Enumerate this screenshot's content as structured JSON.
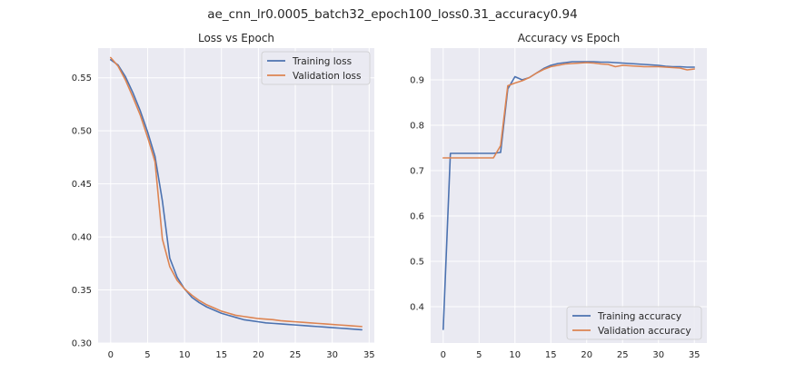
{
  "figure": {
    "title": "ae_cnn_lr0.0005_batch32_epoch100_loss0.31_accuracy0.94"
  },
  "colors": {
    "background": "#eaeaf2",
    "grid": "#ffffff",
    "training": "#4c72b0",
    "validation": "#dd8452"
  },
  "chart_data": [
    {
      "type": "line",
      "title": "Loss vs Epoch",
      "xlabel": "",
      "ylabel": "",
      "xlim": [
        -1.7,
        35.7
      ],
      "ylim": [
        0.3,
        0.578
      ],
      "xticks": [
        0,
        5,
        10,
        15,
        20,
        25,
        30,
        35
      ],
      "yticks": [
        0.3,
        0.35,
        0.4,
        0.45,
        0.5,
        0.55
      ],
      "ytick_labels": [
        "0.30",
        "0.35",
        "0.40",
        "0.45",
        "0.50",
        "0.55"
      ],
      "grid": true,
      "legend_position": "top-right",
      "x": [
        0,
        1,
        2,
        3,
        4,
        5,
        6,
        7,
        8,
        9,
        10,
        11,
        12,
        13,
        14,
        15,
        16,
        17,
        18,
        19,
        20,
        21,
        22,
        23,
        24,
        25,
        26,
        27,
        28,
        29,
        30,
        31,
        32,
        33,
        34
      ],
      "series": [
        {
          "name": "Training loss",
          "color": "#4c72b0",
          "values": [
            0.567,
            0.562,
            0.551,
            0.536,
            0.519,
            0.499,
            0.476,
            0.434,
            0.38,
            0.362,
            0.351,
            0.343,
            0.338,
            0.334,
            0.331,
            0.328,
            0.326,
            0.324,
            0.322,
            0.321,
            0.32,
            0.319,
            0.3185,
            0.318,
            0.3175,
            0.317,
            0.3165,
            0.316,
            0.3155,
            0.315,
            0.3145,
            0.314,
            0.3135,
            0.313,
            0.3125
          ]
        },
        {
          "name": "Validation loss",
          "color": "#dd8452",
          "values": [
            0.569,
            0.561,
            0.548,
            0.532,
            0.515,
            0.494,
            0.471,
            0.398,
            0.372,
            0.359,
            0.351,
            0.345,
            0.34,
            0.336,
            0.333,
            0.33,
            0.328,
            0.326,
            0.325,
            0.324,
            0.323,
            0.3225,
            0.322,
            0.321,
            0.3205,
            0.32,
            0.3195,
            0.319,
            0.3185,
            0.318,
            0.3175,
            0.317,
            0.3165,
            0.316,
            0.3155
          ]
        }
      ]
    },
    {
      "type": "line",
      "title": "Accuracy vs Epoch",
      "xlabel": "",
      "ylabel": "",
      "xlim": [
        -1.75,
        36.75
      ],
      "ylim": [
        0.32,
        0.97
      ],
      "xticks": [
        0,
        5,
        10,
        15,
        20,
        25,
        30,
        35
      ],
      "yticks": [
        0.4,
        0.5,
        0.6,
        0.7,
        0.8,
        0.9
      ],
      "ytick_labels": [
        "0.4",
        "0.5",
        "0.6",
        "0.7",
        "0.8",
        "0.9"
      ],
      "grid": true,
      "legend_position": "bottom-right",
      "x": [
        0,
        1,
        2,
        3,
        4,
        5,
        6,
        7,
        8,
        9,
        10,
        11,
        12,
        13,
        14,
        15,
        16,
        17,
        18,
        19,
        20,
        21,
        22,
        23,
        24,
        25,
        26,
        27,
        28,
        29,
        30,
        31,
        32,
        33,
        34,
        35
      ],
      "series": [
        {
          "name": "Training accuracy",
          "color": "#4c72b0",
          "values": [
            0.35,
            0.738,
            0.738,
            0.738,
            0.738,
            0.738,
            0.738,
            0.738,
            0.74,
            0.88,
            0.907,
            0.9,
            0.905,
            0.915,
            0.925,
            0.932,
            0.936,
            0.938,
            0.94,
            0.94,
            0.94,
            0.94,
            0.939,
            0.939,
            0.938,
            0.937,
            0.936,
            0.935,
            0.934,
            0.933,
            0.932,
            0.93,
            0.929,
            0.929,
            0.928,
            0.928
          ]
        },
        {
          "name": "Validation accuracy",
          "color": "#dd8452",
          "values": [
            0.728,
            0.728,
            0.728,
            0.728,
            0.728,
            0.728,
            0.728,
            0.728,
            0.755,
            0.887,
            0.893,
            0.898,
            0.905,
            0.915,
            0.923,
            0.929,
            0.932,
            0.935,
            0.936,
            0.937,
            0.938,
            0.937,
            0.935,
            0.934,
            0.929,
            0.932,
            0.931,
            0.93,
            0.929,
            0.929,
            0.929,
            0.928,
            0.927,
            0.926,
            0.922,
            0.924
          ]
        }
      ]
    }
  ]
}
